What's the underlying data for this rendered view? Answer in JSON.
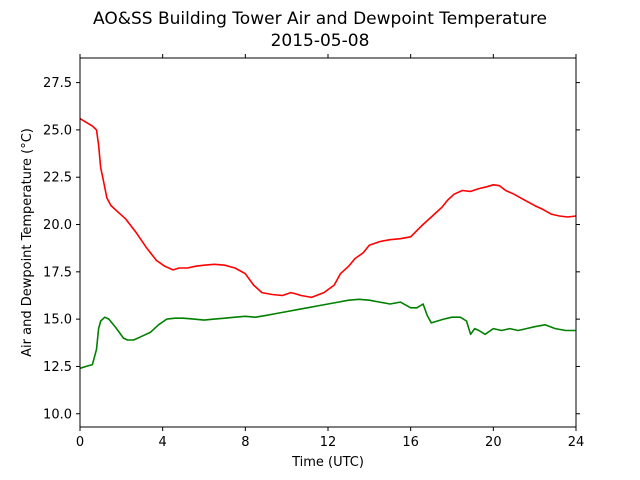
{
  "chart_data": {
    "type": "line",
    "title": "AO&SS Building Tower Air and Dewpoint Temperature",
    "subtitle": "2015-05-08",
    "xlabel": "Time (UTC)",
    "ylabel": "Air and Dewpoint Temperature (°C)",
    "xlim": [
      0,
      24
    ],
    "ylim": [
      9.3,
      28.8
    ],
    "grid": false,
    "x_ticks": [
      0,
      4,
      8,
      12,
      16,
      20,
      24
    ],
    "x_tick_labels": [
      "0",
      "4",
      "8",
      "12",
      "16",
      "20",
      "24"
    ],
    "y_ticks": [
      10.0,
      12.5,
      15.0,
      17.5,
      20.0,
      22.5,
      25.0,
      27.5
    ],
    "y_tick_labels": [
      "10.0",
      "12.5",
      "15.0",
      "17.5",
      "20.0",
      "22.5",
      "25.0",
      "27.5"
    ],
    "series": [
      {
        "color": "#ff0000",
        "x": [
          0,
          0.3,
          0.6,
          0.8,
          0.9,
          1.0,
          1.1,
          1.3,
          1.5,
          1.8,
          2.2,
          2.7,
          3.2,
          3.7,
          4.1,
          4.5,
          4.8,
          5.2,
          5.6,
          6.0,
          6.5,
          7.0,
          7.5,
          8.0,
          8.4,
          8.8,
          9.3,
          9.8,
          10.2,
          10.4,
          10.7,
          11.2,
          11.8,
          12.3,
          12.6,
          13.0,
          13.3,
          13.7,
          14.0,
          14.5,
          15.0,
          15.5,
          16.0,
          16.5,
          17.0,
          17.5,
          17.8,
          18.1,
          18.5,
          18.9,
          19.3,
          19.7,
          20.0,
          20.3,
          20.6,
          21.0,
          21.5,
          22.0,
          22.4,
          22.8,
          23.2,
          23.6,
          24.0
        ],
        "values": [
          25.6,
          25.4,
          25.2,
          25.0,
          24.2,
          23.0,
          22.5,
          21.4,
          21.0,
          20.7,
          20.3,
          19.6,
          18.8,
          18.1,
          17.8,
          17.6,
          17.7,
          17.7,
          17.8,
          17.85,
          17.9,
          17.85,
          17.7,
          17.4,
          16.8,
          16.4,
          16.3,
          16.25,
          16.4,
          16.35,
          16.25,
          16.15,
          16.4,
          16.8,
          17.4,
          17.8,
          18.2,
          18.5,
          18.9,
          19.1,
          19.2,
          19.25,
          19.35,
          19.9,
          20.4,
          20.9,
          21.3,
          21.6,
          21.8,
          21.75,
          21.9,
          22.0,
          22.1,
          22.05,
          21.8,
          21.6,
          21.3,
          21.0,
          20.8,
          20.55,
          20.45,
          20.4,
          20.45
        ]
      },
      {
        "color": "#008000",
        "x": [
          0,
          0.3,
          0.6,
          0.8,
          0.9,
          1.0,
          1.2,
          1.4,
          1.7,
          1.9,
          2.1,
          2.3,
          2.6,
          3.0,
          3.4,
          3.8,
          4.2,
          4.6,
          5.0,
          5.5,
          6.0,
          6.5,
          7.0,
          7.5,
          8.0,
          8.5,
          9.0,
          9.5,
          10.0,
          10.5,
          11.0,
          11.5,
          12.0,
          12.5,
          13.0,
          13.5,
          14.0,
          14.5,
          15.0,
          15.5,
          16.0,
          16.3,
          16.6,
          16.8,
          17.0,
          17.3,
          17.6,
          18.0,
          18.4,
          18.7,
          18.9,
          19.1,
          19.3,
          19.6,
          20.0,
          20.4,
          20.8,
          21.2,
          21.6,
          22.0,
          22.5,
          23.0,
          23.5,
          24.0
        ],
        "values": [
          12.4,
          12.5,
          12.6,
          13.4,
          14.5,
          14.9,
          15.1,
          15.0,
          14.6,
          14.3,
          14.0,
          13.9,
          13.9,
          14.1,
          14.3,
          14.7,
          15.0,
          15.05,
          15.05,
          15.0,
          14.95,
          15.0,
          15.05,
          15.1,
          15.15,
          15.1,
          15.2,
          15.3,
          15.4,
          15.5,
          15.6,
          15.7,
          15.8,
          15.9,
          16.0,
          16.05,
          16.0,
          15.9,
          15.8,
          15.9,
          15.6,
          15.6,
          15.8,
          15.2,
          14.8,
          14.9,
          15.0,
          15.1,
          15.1,
          14.9,
          14.2,
          14.5,
          14.4,
          14.2,
          14.5,
          14.4,
          14.5,
          14.4,
          14.5,
          14.6,
          14.7,
          14.5,
          14.4,
          14.4
        ]
      }
    ]
  }
}
